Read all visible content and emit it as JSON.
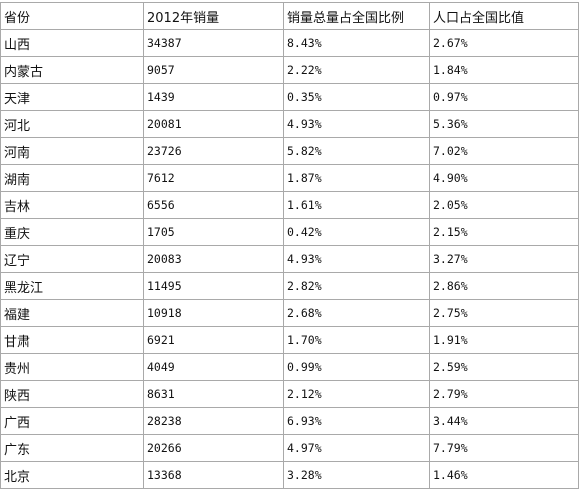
{
  "table": {
    "headers": [
      "省份",
      "2012年销量",
      "销量总量占全国比例",
      "人口占全国比值"
    ],
    "rows": [
      [
        "山西",
        "34387",
        "8.43%",
        "2.67%"
      ],
      [
        "内蒙古",
        "9057",
        "2.22%",
        "1.84%"
      ],
      [
        "天津",
        "1439",
        "0.35%",
        "0.97%"
      ],
      [
        "河北",
        "20081",
        "4.93%",
        "5.36%"
      ],
      [
        "河南",
        "23726",
        "5.82%",
        "7.02%"
      ],
      [
        "湖南",
        "7612",
        "1.87%",
        "4.90%"
      ],
      [
        "吉林",
        "6556",
        "1.61%",
        "2.05%"
      ],
      [
        "重庆",
        "1705",
        "0.42%",
        "2.15%"
      ],
      [
        "辽宁",
        "20083",
        "4.93%",
        "3.27%"
      ],
      [
        "黑龙江",
        "11495",
        "2.82%",
        "2.86%"
      ],
      [
        "福建",
        "10918",
        "2.68%",
        "2.75%"
      ],
      [
        "甘肃",
        "6921",
        "1.70%",
        "1.91%"
      ],
      [
        "贵州",
        "4049",
        "0.99%",
        "2.59%"
      ],
      [
        "陕西",
        "8631",
        "2.12%",
        "2.79%"
      ],
      [
        "广西",
        "28238",
        "6.93%",
        "3.44%"
      ],
      [
        "广东",
        "20266",
        "4.97%",
        "7.79%"
      ],
      [
        "北京",
        "13368",
        "3.28%",
        "1.46%"
      ]
    ]
  }
}
